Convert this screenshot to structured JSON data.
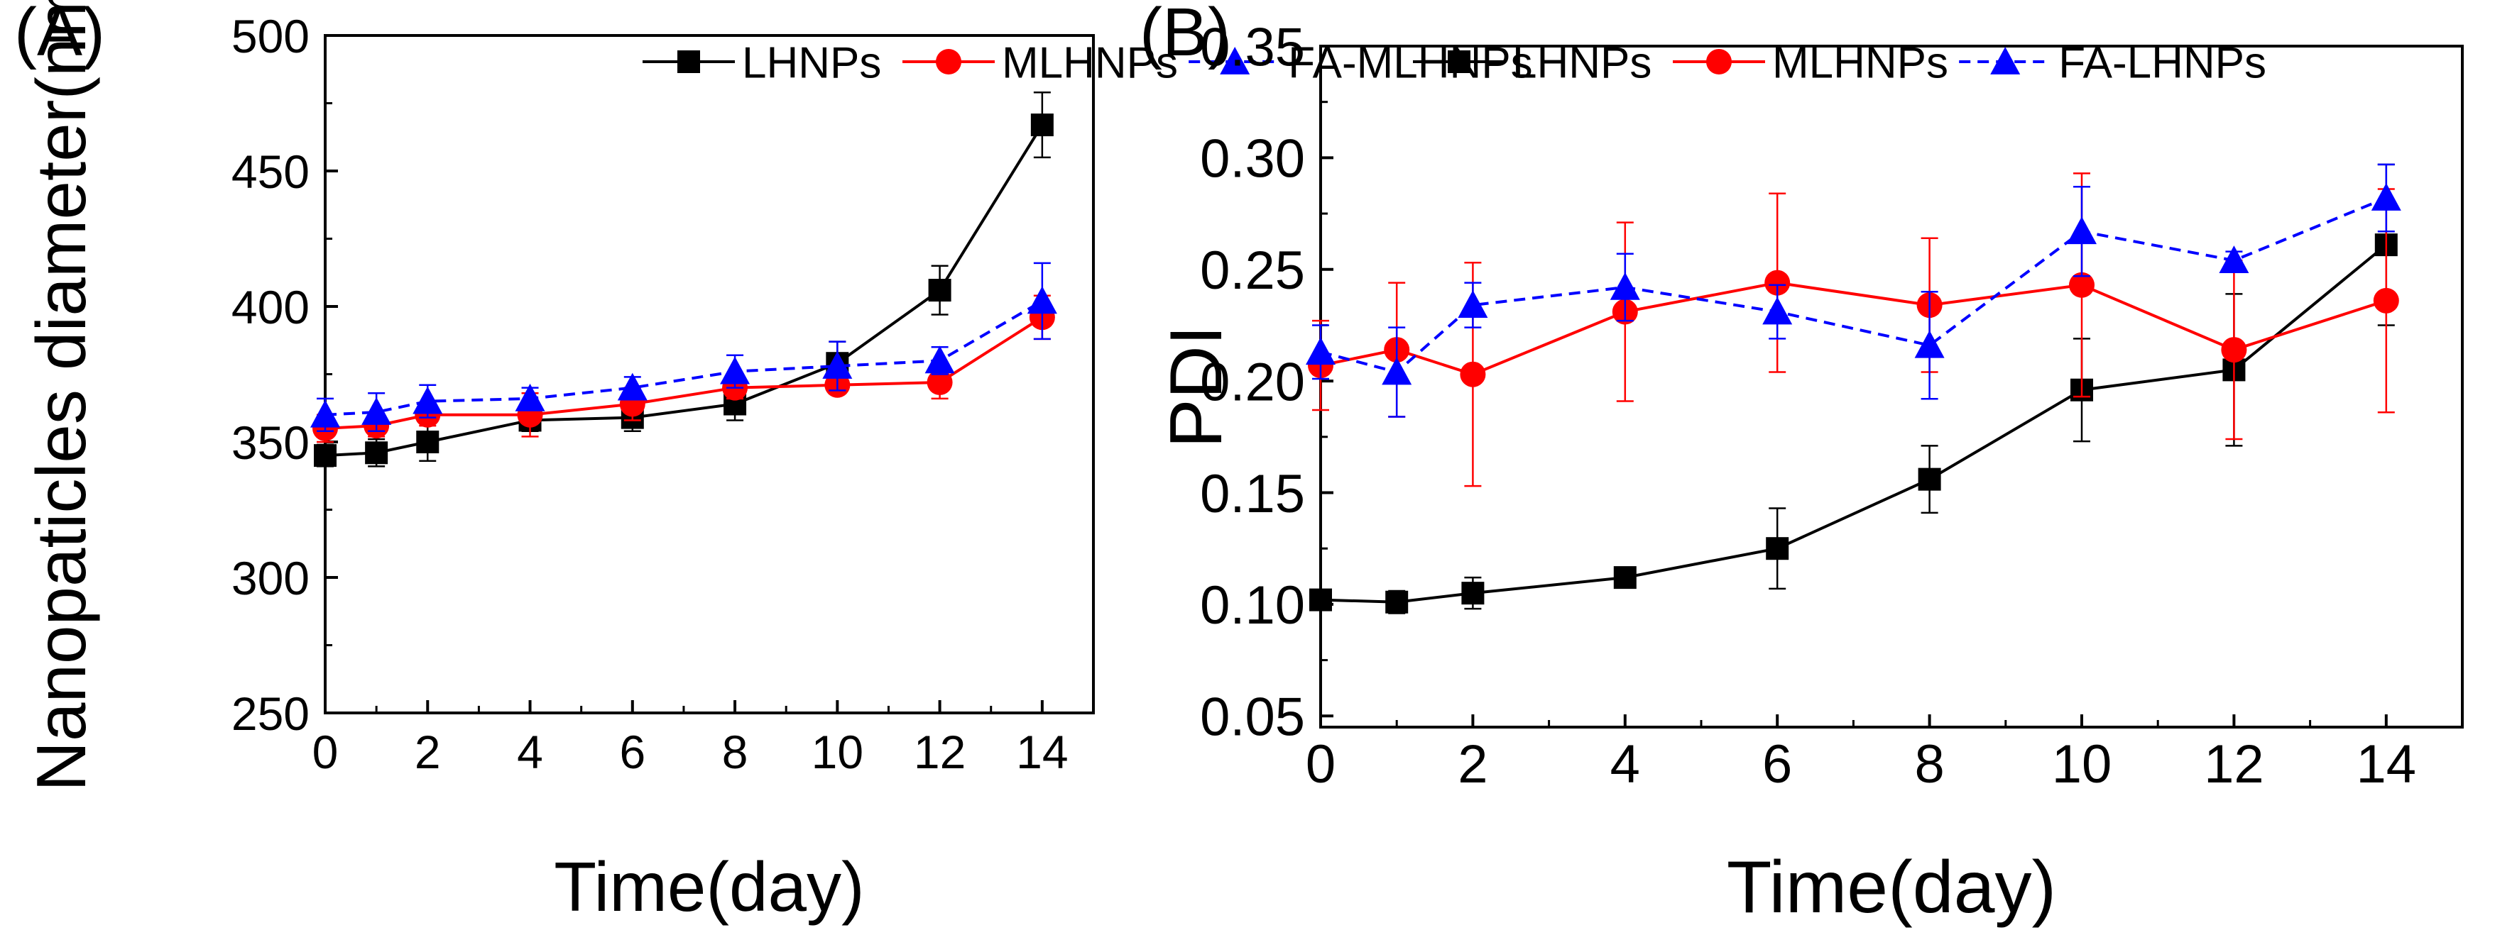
{
  "chart_data": [
    {
      "type": "line",
      "panel_label": "(A)",
      "xlabel": "Time(day)",
      "ylabel": "Nanopaticles diameter(nm)",
      "xlim": [
        0,
        15
      ],
      "ylim": [
        250,
        500
      ],
      "xticks": [
        0,
        2,
        4,
        6,
        8,
        10,
        12,
        14
      ],
      "yticks": [
        250,
        300,
        350,
        400,
        450,
        500
      ],
      "x": [
        0,
        1,
        2,
        4,
        6,
        8,
        10,
        12,
        14
      ],
      "legend_position": "top-right",
      "series": [
        {
          "name": "LHNPs",
          "color": "#000000",
          "marker": "square",
          "dash": "solid",
          "values": [
            345,
            346,
            350,
            358,
            359,
            364,
            379,
            406,
            467
          ],
          "errors": [
            4,
            5,
            7,
            4,
            5,
            6,
            8,
            9,
            12
          ]
        },
        {
          "name": "MLHNPs",
          "color": "#ff0000",
          "marker": "circle",
          "dash": "solid",
          "values": [
            355,
            356,
            360,
            360,
            364,
            370,
            371,
            372,
            396
          ],
          "errors": [
            5,
            4,
            4,
            8,
            6,
            4,
            3,
            6,
            8
          ]
        },
        {
          "name": "FA-MLHNPs",
          "color": "#0000ff",
          "marker": "triangle",
          "dash": "dashed",
          "values": [
            360,
            361,
            365,
            366,
            370,
            376,
            378,
            380,
            402
          ],
          "errors": [
            6,
            7,
            6,
            4,
            4,
            6,
            9,
            5,
            14
          ]
        }
      ]
    },
    {
      "type": "line",
      "panel_label": "(B)",
      "xlabel": "Time(day)",
      "ylabel": "PDI",
      "xlim": [
        0,
        15
      ],
      "ylim": [
        0.045,
        0.35
      ],
      "xticks": [
        0,
        2,
        4,
        6,
        8,
        10,
        12,
        14
      ],
      "yticks": [
        "0.05",
        "0.10",
        "0.15",
        "0.20",
        "0.25",
        "0.30",
        "0.35"
      ],
      "x": [
        0,
        1,
        2,
        4,
        6,
        8,
        10,
        12,
        14
      ],
      "legend_position": "top-right",
      "series": [
        {
          "name": "LHNPs",
          "color": "#000000",
          "marker": "square",
          "dash": "solid",
          "values": [
            0.102,
            0.101,
            0.105,
            0.112,
            0.125,
            0.156,
            0.196,
            0.205,
            0.261
          ],
          "errors": [
            0.004,
            0.005,
            0.007,
            0.004,
            0.018,
            0.015,
            0.023,
            0.034,
            0.036
          ]
        },
        {
          "name": "MLHNPs",
          "color": "#ff0000",
          "marker": "circle",
          "dash": "solid",
          "values": [
            0.207,
            0.214,
            0.203,
            0.231,
            0.244,
            0.234,
            0.243,
            0.214,
            0.236
          ],
          "errors": [
            0.02,
            0.03,
            0.05,
            0.04,
            0.04,
            0.03,
            0.05,
            0.04,
            0.05
          ]
        },
        {
          "name": "FA-LHNPs",
          "color": "#0000ff",
          "marker": "triangle",
          "dash": "dashed",
          "values": [
            0.213,
            0.204,
            0.234,
            0.242,
            0.231,
            0.216,
            0.267,
            0.254,
            0.282
          ],
          "errors": [
            0.012,
            0.02,
            0.01,
            0.015,
            0.012,
            0.024,
            0.02,
            0.004,
            0.015
          ]
        }
      ]
    }
  ]
}
